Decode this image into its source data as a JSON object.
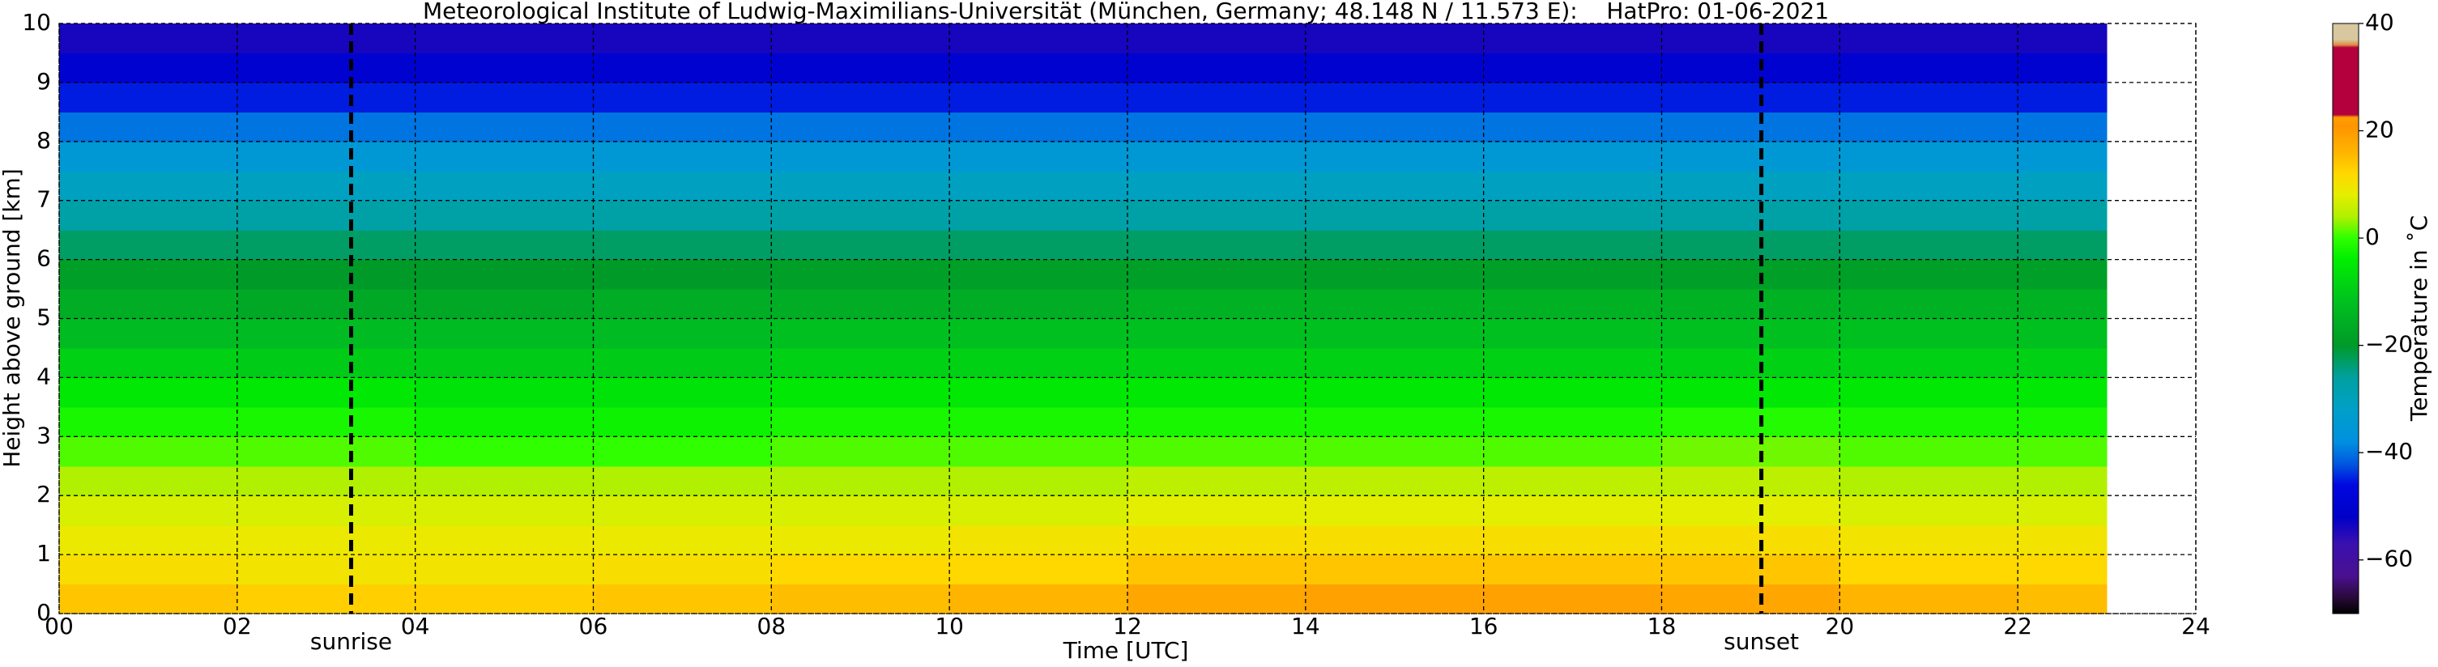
{
  "chart_data": {
    "type": "heatmap",
    "title": "Meteorological Institute of Ludwig-Maximilians-Universität (München, Germany; 48.148 N / 11.573 E):    HatPro: 01-06-2021",
    "x_label": "Time [UTC]",
    "y_label": "Height above ground [km]",
    "x_edges": [
      0,
      2,
      4,
      6,
      8,
      10,
      12,
      14,
      16,
      18,
      20,
      22,
      23
    ],
    "y_edges": [
      0,
      0.5,
      1,
      1.5,
      2,
      2.5,
      3,
      3.5,
      4,
      4.5,
      5,
      5.5,
      6,
      6.5,
      7,
      7.5,
      8,
      8.5,
      9,
      9.5,
      10
    ],
    "z": [
      [
        14,
        13,
        13,
        14,
        15,
        16,
        18,
        19,
        19,
        18,
        16,
        15
      ],
      [
        11,
        10,
        10,
        11,
        12,
        12,
        14,
        14,
        14,
        14,
        12,
        12
      ],
      [
        9,
        9,
        9,
        9,
        9,
        10,
        11,
        11,
        11,
        11,
        10,
        10
      ],
      [
        7,
        7,
        7,
        7,
        7,
        7,
        8,
        8,
        8,
        8,
        7,
        7
      ],
      [
        4,
        4,
        4,
        4,
        4,
        4,
        5,
        5,
        5,
        5,
        4,
        4
      ],
      [
        1,
        1,
        0,
        0,
        1,
        1,
        1,
        1,
        1,
        2,
        1,
        1
      ],
      [
        -2,
        -2,
        -3,
        -3,
        -2,
        -2,
        -2,
        -2,
        -2,
        -1,
        -2,
        -2
      ],
      [
        -5,
        -5,
        -6,
        -6,
        -5,
        -5,
        -5,
        -5,
        -5,
        -5,
        -5,
        -5
      ],
      [
        -9,
        -10,
        -10,
        -10,
        -9,
        -9,
        -9,
        -9,
        -9,
        -9,
        -9,
        -9
      ],
      [
        -13,
        -13,
        -13,
        -13,
        -12,
        -12,
        -12,
        -12,
        -12,
        -12,
        -12,
        -12
      ],
      [
        -16,
        -17,
        -17,
        -16,
        -16,
        -16,
        -15,
        -15,
        -15,
        -15,
        -15,
        -15
      ],
      [
        -19,
        -20,
        -20,
        -20,
        -19,
        -19,
        -19,
        -19,
        -19,
        -19,
        -19,
        -19
      ],
      [
        -23,
        -23,
        -23,
        -23,
        -23,
        -23,
        -23,
        -23,
        -23,
        -23,
        -23,
        -23
      ],
      [
        -27,
        -27,
        -27,
        -27,
        -27,
        -27,
        -27,
        -27,
        -27,
        -27,
        -27,
        -27
      ],
      [
        -31,
        -31,
        -31,
        -31,
        -31,
        -31,
        -31,
        -31,
        -31,
        -31,
        -31,
        -31
      ],
      [
        -35,
        -35,
        -35,
        -35,
        -35,
        -35,
        -35,
        -35,
        -35,
        -35,
        -35,
        -35
      ],
      [
        -40,
        -40,
        -40,
        -40,
        -40,
        -40,
        -40,
        -40,
        -40,
        -40,
        -40,
        -40
      ],
      [
        -45,
        -45,
        -45,
        -45,
        -45,
        -45,
        -45,
        -45,
        -45,
        -45,
        -45,
        -45
      ],
      [
        -50,
        -50,
        -50,
        -50,
        -50,
        -50,
        -50,
        -50,
        -50,
        -50,
        -50,
        -50
      ],
      [
        -54,
        -54,
        -54,
        -54,
        -54,
        -54,
        -54,
        -54,
        -54,
        -54,
        -54,
        -54
      ]
    ],
    "xlim": [
      0,
      24
    ],
    "xticks": [
      {
        "value": 0,
        "label": "00"
      },
      {
        "value": 2,
        "label": "02"
      },
      {
        "value": 4,
        "label": "04"
      },
      {
        "value": 6,
        "label": "06"
      },
      {
        "value": 8,
        "label": "08"
      },
      10,
      12,
      14,
      16,
      18,
      20,
      22,
      24
    ],
    "ylim": [
      0,
      10
    ],
    "yticks": [
      0,
      1,
      2,
      3,
      4,
      5,
      6,
      7,
      8,
      9,
      10
    ],
    "grid": true,
    "annotations": [
      {
        "label": "sunrise",
        "x": 3.28
      },
      {
        "label": "sunset",
        "x": 19.12
      }
    ],
    "colorbar": {
      "label": "Temperature in ˚C",
      "lim": [
        -70,
        40
      ],
      "ticks": [
        {
          "value": -60,
          "label": "−60"
        },
        {
          "value": -40,
          "label": "−40"
        },
        {
          "value": -20,
          "label": "−20"
        },
        0,
        20,
        40
      ],
      "colormap": [
        [
          -70,
          "#000000"
        ],
        [
          -67,
          "#2a0a3a"
        ],
        [
          -63,
          "#4a1090"
        ],
        [
          -57,
          "#3a10b0"
        ],
        [
          -52,
          "#0000c8"
        ],
        [
          -46,
          "#0008e0"
        ],
        [
          -42,
          "#0058e0"
        ],
        [
          -38,
          "#0090e0"
        ],
        [
          -32,
          "#00a0c8"
        ],
        [
          -26,
          "#00a0a0"
        ],
        [
          -20,
          "#009a28"
        ],
        [
          -12,
          "#00c020"
        ],
        [
          -4,
          "#00ee00"
        ],
        [
          0,
          "#30ff00"
        ],
        [
          4,
          "#b0f000"
        ],
        [
          8,
          "#e4ee00"
        ],
        [
          12,
          "#ffd800"
        ],
        [
          16,
          "#ffb400"
        ],
        [
          21,
          "#ff9400"
        ],
        [
          22.5,
          "#ffa000"
        ],
        [
          23,
          "#b4003c"
        ],
        [
          35.5,
          "#b4003c"
        ],
        [
          36,
          "#e08c40"
        ],
        [
          37,
          "#d8c8a0"
        ],
        [
          40,
          "#d8c8a0"
        ]
      ]
    }
  }
}
